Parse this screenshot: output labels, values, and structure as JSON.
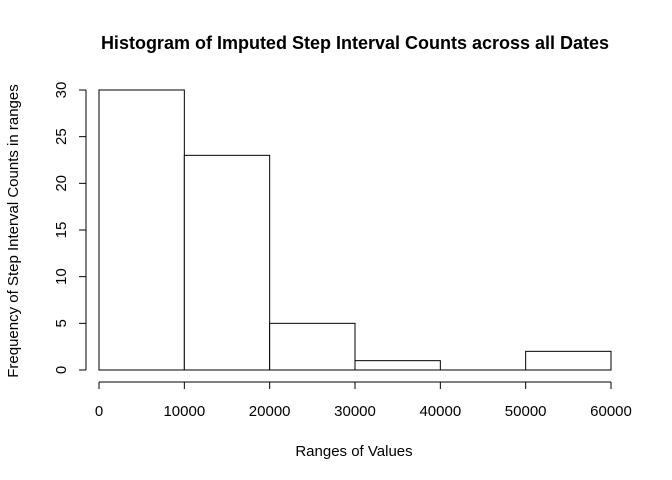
{
  "chart_data": {
    "type": "bar",
    "title": "Histogram of Imputed Step Interval Counts across all Dates",
    "xlabel": "Ranges of Values",
    "ylabel": "Frequency of Step Interval Counts in ranges",
    "bins": [
      {
        "from": 0,
        "to": 10000,
        "count": 30
      },
      {
        "from": 10000,
        "to": 20000,
        "count": 23
      },
      {
        "from": 20000,
        "to": 30000,
        "count": 5
      },
      {
        "from": 30000,
        "to": 40000,
        "count": 1
      },
      {
        "from": 40000,
        "to": 50000,
        "count": 0
      },
      {
        "from": 50000,
        "to": 60000,
        "count": 2
      }
    ],
    "xlim": [
      0,
      60000
    ],
    "ylim": [
      0,
      30
    ],
    "xticks": [
      0,
      10000,
      20000,
      30000,
      40000,
      50000,
      60000
    ],
    "yticks": [
      0,
      5,
      10,
      15,
      20,
      25,
      30
    ],
    "grid": false,
    "legend": "none",
    "colors": {
      "bar_fill": "#ffffff",
      "bar_stroke": "#000000"
    }
  }
}
